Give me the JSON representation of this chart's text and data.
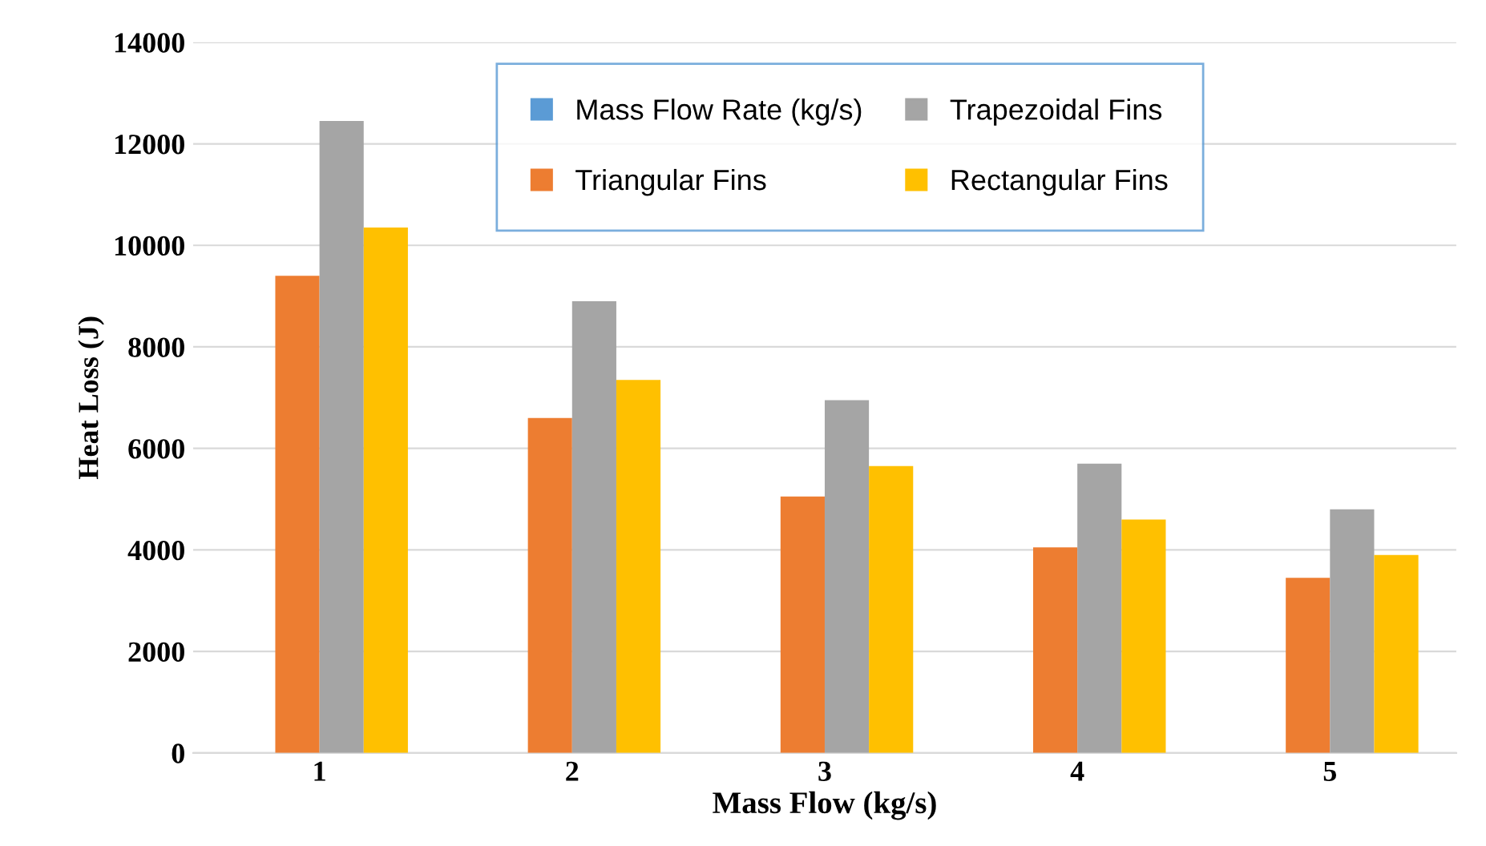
{
  "chart_data": {
    "type": "bar",
    "xlabel": "Mass Flow (kg/s)",
    "ylabel": "Heat Loss (J)",
    "categories": [
      "1",
      "2",
      "3",
      "4",
      "5"
    ],
    "series": [
      {
        "name": "Mass Flow Rate (kg/s)",
        "color": "#5b9bd5",
        "values": [
          null,
          null,
          null,
          null,
          null
        ]
      },
      {
        "name": "Triangular Fins",
        "color": "#ed7d31",
        "values": [
          9400,
          6600,
          5050,
          4050,
          3450
        ]
      },
      {
        "name": "Trapezoidal Fins",
        "color": "#a5a5a5",
        "values": [
          12450,
          8900,
          6950,
          5700,
          4800
        ]
      },
      {
        "name": "Rectangular Fins",
        "color": "#ffc000",
        "values": [
          10350,
          7350,
          5650,
          4600,
          3900
        ]
      }
    ],
    "ylim": [
      0,
      14000
    ],
    "yticks": [
      0,
      2000,
      4000,
      6000,
      8000,
      10000,
      12000,
      14000
    ],
    "grid": "y",
    "legend": "top"
  }
}
